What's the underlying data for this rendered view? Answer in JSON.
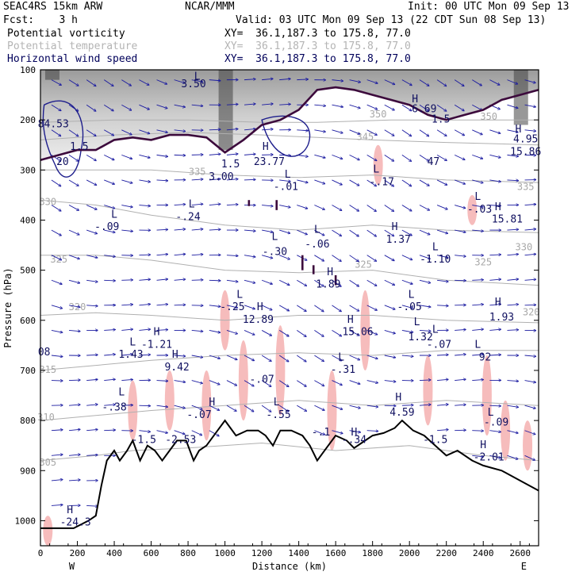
{
  "header": {
    "line1_left": "SEAC4RS 15km ARW",
    "line1_mid": "NCAR/MMM",
    "line1_right": "Init: 00 UTC Mon 09 Sep 13",
    "line2_left": "Fcst:    3 h",
    "line2_right": "Valid: 03 UTC Mon 09 Sep 13 (22 CDT Sun 08 Sep 13)"
  },
  "fields": [
    {
      "name": "Potential vorticity",
      "xy": "XY=  36.1,187.3 to 175.8, 77.0",
      "color": "#000000"
    },
    {
      "name": "Potential temperature",
      "xy": "XY=  36.1,187.3 to 175.8, 77.0",
      "color": "#b4b4b4"
    },
    {
      "name": "Horizontal wind speed",
      "xy": "XY=  36.1,187.3 to 175.8, 77.0",
      "color": "#00005a"
    }
  ],
  "colors": {
    "theta": "#b0b0b0",
    "pv_pos": "#3c0a3c",
    "pv_neg": "#f6bcbc",
    "wind": "#1a1aa0",
    "terrain": "#000000",
    "blue_contour": "#1e1e8c"
  },
  "chart_data": {
    "type": "cross-section",
    "xlabel": "Distance (km)",
    "ylabel": "Pressure (hPa)",
    "xlim": [
      0,
      2700
    ],
    "ylim": [
      1050,
      100
    ],
    "x_ticks": [
      0,
      200,
      400,
      600,
      800,
      1000,
      1200,
      1400,
      1600,
      1800,
      2000,
      2200,
      2400,
      2600
    ],
    "y_ticks": [
      100,
      200,
      300,
      400,
      500,
      600,
      700,
      800,
      900,
      1000
    ],
    "x_end_labels": {
      "left": "W",
      "right": "E"
    },
    "terrain": [
      [
        0,
        1015
      ],
      [
        180,
        1015
      ],
      [
        260,
        1000
      ],
      [
        300,
        990
      ],
      [
        330,
        930
      ],
      [
        360,
        880
      ],
      [
        400,
        860
      ],
      [
        430,
        880
      ],
      [
        470,
        860
      ],
      [
        500,
        840
      ],
      [
        540,
        880
      ],
      [
        580,
        850
      ],
      [
        620,
        860
      ],
      [
        660,
        880
      ],
      [
        700,
        860
      ],
      [
        740,
        840
      ],
      [
        790,
        840
      ],
      [
        830,
        880
      ],
      [
        860,
        860
      ],
      [
        900,
        850
      ],
      [
        960,
        820
      ],
      [
        1000,
        800
      ],
      [
        1060,
        830
      ],
      [
        1120,
        820
      ],
      [
        1180,
        820
      ],
      [
        1220,
        830
      ],
      [
        1260,
        850
      ],
      [
        1300,
        820
      ],
      [
        1360,
        820
      ],
      [
        1420,
        830
      ],
      [
        1460,
        850
      ],
      [
        1500,
        880
      ],
      [
        1560,
        850
      ],
      [
        1600,
        830
      ],
      [
        1660,
        840
      ],
      [
        1700,
        855
      ],
      [
        1740,
        845
      ],
      [
        1800,
        830
      ],
      [
        1860,
        825
      ],
      [
        1920,
        815
      ],
      [
        1960,
        800
      ],
      [
        2020,
        820
      ],
      [
        2080,
        830
      ],
      [
        2140,
        850
      ],
      [
        2200,
        870
      ],
      [
        2260,
        860
      ],
      [
        2340,
        880
      ],
      [
        2400,
        890
      ],
      [
        2500,
        900
      ],
      [
        2600,
        920
      ],
      [
        2700,
        940
      ]
    ],
    "tropopause": [
      [
        0,
        280
      ],
      [
        100,
        270
      ],
      [
        200,
        260
      ],
      [
        300,
        260
      ],
      [
        400,
        240
      ],
      [
        500,
        235
      ],
      [
        600,
        240
      ],
      [
        700,
        230
      ],
      [
        800,
        230
      ],
      [
        900,
        235
      ],
      [
        1000,
        265
      ],
      [
        1100,
        240
      ],
      [
        1200,
        210
      ],
      [
        1300,
        200
      ],
      [
        1400,
        180
      ],
      [
        1450,
        160
      ],
      [
        1500,
        140
      ],
      [
        1600,
        135
      ],
      [
        1700,
        140
      ],
      [
        1800,
        150
      ],
      [
        1900,
        160
      ],
      [
        2000,
        170
      ],
      [
        2100,
        190
      ],
      [
        2200,
        200
      ],
      [
        2300,
        190
      ],
      [
        2400,
        180
      ],
      [
        2500,
        160
      ],
      [
        2600,
        150
      ],
      [
        2700,
        140
      ]
    ],
    "theta_levels": [
      {
        "value": 305,
        "points": [
          [
            0,
            880
          ],
          [
            300,
            870
          ],
          [
            500,
            860
          ],
          [
            800,
            855
          ],
          [
            1200,
            845
          ],
          [
            1600,
            860
          ],
          [
            2000,
            850
          ],
          [
            2400,
            870
          ],
          [
            2700,
            880
          ]
        ]
      },
      {
        "value": 310,
        "points": [
          [
            0,
            800
          ],
          [
            300,
            790
          ],
          [
            600,
            780
          ],
          [
            1000,
            770
          ],
          [
            1400,
            760
          ],
          [
            1800,
            770
          ],
          [
            2200,
            760
          ],
          [
            2700,
            770
          ]
        ]
      },
      {
        "value": 315,
        "points": [
          [
            0,
            700
          ],
          [
            300,
            690
          ],
          [
            600,
            680
          ],
          [
            1000,
            670
          ],
          [
            1400,
            665
          ],
          [
            1800,
            670
          ],
          [
            2200,
            660
          ],
          [
            2700,
            660
          ]
        ]
      },
      {
        "value": 320,
        "points": [
          [
            0,
            590
          ],
          [
            300,
            585
          ],
          [
            600,
            590
          ],
          [
            1000,
            600
          ],
          [
            1400,
            590
          ],
          [
            1800,
            590
          ],
          [
            2200,
            600
          ],
          [
            2700,
            605
          ]
        ]
      },
      {
        "value": 325,
        "points": [
          [
            0,
            470
          ],
          [
            300,
            470
          ],
          [
            600,
            480
          ],
          [
            1000,
            500
          ],
          [
            1400,
            505
          ],
          [
            1800,
            500
          ],
          [
            2200,
            520
          ],
          [
            2700,
            530
          ]
        ]
      },
      {
        "value": 330,
        "points": [
          [
            0,
            360
          ],
          [
            300,
            370
          ],
          [
            600,
            390
          ],
          [
            1000,
            410
          ],
          [
            1400,
            420
          ],
          [
            1800,
            410
          ],
          [
            2200,
            420
          ],
          [
            2700,
            425
          ]
        ]
      },
      {
        "value": 335,
        "points": [
          [
            0,
            300
          ],
          [
            300,
            300
          ],
          [
            600,
            300
          ],
          [
            1000,
            310
          ],
          [
            1400,
            315
          ],
          [
            1800,
            310
          ],
          [
            2200,
            320
          ],
          [
            2700,
            325
          ]
        ]
      },
      {
        "value": 345,
        "points": [
          [
            0,
            240
          ],
          [
            400,
            230
          ],
          [
            800,
            225
          ],
          [
            1200,
            230
          ],
          [
            1500,
            235
          ],
          [
            1800,
            240
          ],
          [
            2200,
            245
          ],
          [
            2700,
            250
          ]
        ]
      },
      {
        "value": 350,
        "points": [
          [
            0,
            205
          ],
          [
            400,
            200
          ],
          [
            800,
            200
          ],
          [
            1200,
            205
          ],
          [
            1500,
            205
          ],
          [
            1900,
            200
          ],
          [
            2300,
            200
          ],
          [
            2700,
            200
          ]
        ]
      }
    ],
    "theta_labels": [
      {
        "text": "305",
        "x": 40,
        "p": 890
      },
      {
        "text": "310",
        "x": 30,
        "p": 800
      },
      {
        "text": "315",
        "x": 40,
        "p": 705
      },
      {
        "text": "320",
        "x": 200,
        "p": 580
      },
      {
        "text": "325",
        "x": 100,
        "p": 485
      },
      {
        "text": "330",
        "x": 40,
        "p": 370
      },
      {
        "text": "335",
        "x": 850,
        "p": 310
      },
      {
        "text": "345",
        "x": 1760,
        "p": 240
      },
      {
        "text": "350",
        "x": 1830,
        "p": 195
      },
      {
        "text": "350",
        "x": 2430,
        "p": 200
      },
      {
        "text": "335",
        "x": 2630,
        "p": 340
      },
      {
        "text": "325",
        "x": 1750,
        "p": 495
      },
      {
        "text": "325",
        "x": 2400,
        "p": 490
      },
      {
        "text": "330",
        "x": 2620,
        "p": 460
      },
      {
        "text": "320",
        "x": 2660,
        "p": 590
      }
    ],
    "hl_labels": [
      {
        "text": "L",
        "x": 850,
        "p": 120
      },
      {
        "text": "3.50",
        "x": 830,
        "p": 135
      },
      {
        "text": "H",
        "x": 2030,
        "p": 165
      },
      {
        "text": "6.69",
        "x": 2080,
        "p": 185
      },
      {
        "text": "1.5",
        "x": 2170,
        "p": 205
      },
      {
        "text": "H",
        "x": 2590,
        "p": 225
      },
      {
        "text": "4.95",
        "x": 2630,
        "p": 245
      },
      {
        "text": "15.86",
        "x": 2630,
        "p": 270
      },
      {
        "text": "84.53",
        "x": 70,
        "p": 215
      },
      {
        "text": "1.5",
        "x": 210,
        "p": 260
      },
      {
        "text": "20",
        "x": 120,
        "p": 290
      },
      {
        "text": "1.5",
        "x": 1030,
        "p": 295
      },
      {
        "text": "3.00",
        "x": 980,
        "p": 320
      },
      {
        "text": "H",
        "x": 1220,
        "p": 260
      },
      {
        "text": "23.77",
        "x": 1240,
        "p": 290
      },
      {
        "text": "L",
        "x": 1340,
        "p": 315
      },
      {
        "text": "-.01",
        "x": 1330,
        "p": 340
      },
      {
        "text": "L",
        "x": 1820,
        "p": 305
      },
      {
        "text": "-.17",
        "x": 1850,
        "p": 330
      },
      {
        "text": "47",
        "x": 2130,
        "p": 290
      },
      {
        "text": "L",
        "x": 2370,
        "p": 360
      },
      {
        "text": "-.03",
        "x": 2380,
        "p": 385
      },
      {
        "text": "H",
        "x": 2480,
        "p": 380
      },
      {
        "text": "15.81",
        "x": 2530,
        "p": 405
      },
      {
        "text": "L",
        "x": 400,
        "p": 395
      },
      {
        "text": "-.09",
        "x": 360,
        "p": 420
      },
      {
        "text": "L",
        "x": 820,
        "p": 375
      },
      {
        "text": "-.24",
        "x": 800,
        "p": 400
      },
      {
        "text": "L",
        "x": 1270,
        "p": 440
      },
      {
        "text": "-.30",
        "x": 1270,
        "p": 470
      },
      {
        "text": "L",
        "x": 1500,
        "p": 425
      },
      {
        "text": "-.06",
        "x": 1500,
        "p": 455
      },
      {
        "text": "H",
        "x": 1920,
        "p": 420
      },
      {
        "text": "1.37",
        "x": 1940,
        "p": 445
      },
      {
        "text": "L",
        "x": 2140,
        "p": 460
      },
      {
        "text": "-1.10",
        "x": 2140,
        "p": 485
      },
      {
        "text": "H",
        "x": 1570,
        "p": 510
      },
      {
        "text": "1.89",
        "x": 1560,
        "p": 535
      },
      {
        "text": "L",
        "x": 1080,
        "p": 555
      },
      {
        "text": "-.25",
        "x": 1040,
        "p": 580
      },
      {
        "text": "L",
        "x": 2010,
        "p": 555
      },
      {
        "text": "-.05",
        "x": 2000,
        "p": 580
      },
      {
        "text": "H",
        "x": 2480,
        "p": 570
      },
      {
        "text": "1.93",
        "x": 2500,
        "p": 600
      },
      {
        "text": "H",
        "x": 1190,
        "p": 580
      },
      {
        "text": "12.89",
        "x": 1180,
        "p": 605
      },
      {
        "text": "H",
        "x": 1680,
        "p": 605
      },
      {
        "text": "15.06",
        "x": 1720,
        "p": 630
      },
      {
        "text": "L",
        "x": 2040,
        "p": 610
      },
      {
        "text": "1.32",
        "x": 2060,
        "p": 640
      },
      {
        "text": "L",
        "x": 2140,
        "p": 625
      },
      {
        "text": "-.07",
        "x": 2160,
        "p": 655
      },
      {
        "text": "H",
        "x": 630,
        "p": 630
      },
      {
        "text": "-1.21",
        "x": 630,
        "p": 655
      },
      {
        "text": "L",
        "x": 500,
        "p": 650
      },
      {
        "text": "1.43",
        "x": 490,
        "p": 675
      },
      {
        "text": "H",
        "x": 730,
        "p": 675
      },
      {
        "text": "9.42",
        "x": 740,
        "p": 700
      },
      {
        "text": "L",
        "x": 2370,
        "p": 655
      },
      {
        "text": "92",
        "x": 2410,
        "p": 680
      },
      {
        "text": "L",
        "x": 1630,
        "p": 680
      },
      {
        "text": "-.31",
        "x": 1640,
        "p": 705
      },
      {
        "text": "-.07",
        "x": 1200,
        "p": 725
      },
      {
        "text": "L",
        "x": 440,
        "p": 750
      },
      {
        "text": "-.38",
        "x": 400,
        "p": 780
      },
      {
        "text": "H",
        "x": 930,
        "p": 770
      },
      {
        "text": "-.07",
        "x": 860,
        "p": 795
      },
      {
        "text": "L",
        "x": 1280,
        "p": 770
      },
      {
        "text": "-.55",
        "x": 1290,
        "p": 795
      },
      {
        "text": "H",
        "x": 1940,
        "p": 760
      },
      {
        "text": "4.59",
        "x": 1960,
        "p": 790
      },
      {
        "text": "L",
        "x": 2440,
        "p": 790
      },
      {
        "text": "-.09",
        "x": 2470,
        "p": 810
      },
      {
        "text": "-1.5",
        "x": 560,
        "p": 845
      },
      {
        "text": "-2.53",
        "x": 760,
        "p": 845
      },
      {
        "text": "-.1",
        "x": 1520,
        "p": 830
      },
      {
        "text": "H",
        "x": 1700,
        "p": 830
      },
      {
        "text": "-.34",
        "x": 1700,
        "p": 845
      },
      {
        "text": "-1.5",
        "x": 2140,
        "p": 845
      },
      {
        "text": "H",
        "x": 2400,
        "p": 855
      },
      {
        "text": "-2.01",
        "x": 2430,
        "p": 880
      },
      {
        "text": "H",
        "x": 160,
        "p": 985
      },
      {
        "text": "-24.3",
        "x": 190,
        "p": 1010
      },
      {
        "text": "08",
        "x": 20,
        "p": 670
      }
    ],
    "tropo_shade_pressure_max": 260
  }
}
